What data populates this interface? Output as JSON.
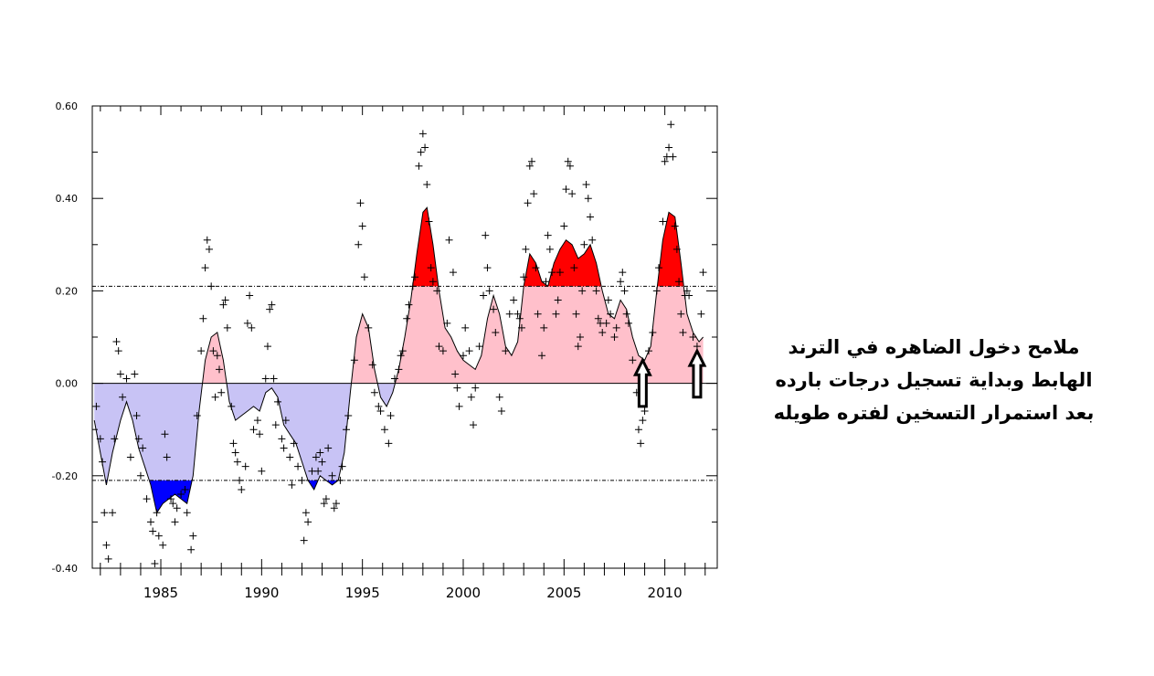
{
  "annotation": {
    "lines": [
      "ملامح دخول الضاهره في الترند",
      "الهابط وبداية تسجيل درجات بارده",
      "بعد استمرار التسخين لفتره طويله"
    ]
  },
  "chart_data": {
    "type": "area",
    "title": "",
    "xlabel": "",
    "ylabel": "",
    "xlim": [
      1981.6,
      2012.6
    ],
    "ylim": [
      -0.4,
      0.6
    ],
    "grid": false,
    "legend": "none",
    "x_ticks": [
      1985,
      1990,
      1995,
      2000,
      2005,
      2010
    ],
    "x_tick_labels": [
      "1985",
      "1990",
      "1995",
      "2000",
      "2005",
      "2010"
    ],
    "y_ticks": [
      -0.4,
      -0.2,
      0.0,
      0.2,
      0.4,
      0.6
    ],
    "y_tick_labels": [
      "-0.40",
      "-0.20",
      "0.00",
      "0.20",
      "0.40",
      "0.60"
    ],
    "reference_lines": [
      0.21,
      -0.21
    ],
    "colors": {
      "positive_fill": "#ffc0cb",
      "negative_fill": "#c8c3f5",
      "above_upper": "#ff0000",
      "below_lower": "#0000ff",
      "line": "#000000"
    },
    "smoothed": [
      [
        1981.7,
        -0.08
      ],
      [
        1982.0,
        -0.15
      ],
      [
        1982.3,
        -0.22
      ],
      [
        1982.6,
        -0.15
      ],
      [
        1983.0,
        -0.08
      ],
      [
        1983.3,
        -0.04
      ],
      [
        1983.6,
        -0.08
      ],
      [
        1983.9,
        -0.14
      ],
      [
        1984.2,
        -0.18
      ],
      [
        1984.5,
        -0.22
      ],
      [
        1984.8,
        -0.28
      ],
      [
        1985.1,
        -0.26
      ],
      [
        1985.4,
        -0.25
      ],
      [
        1985.7,
        -0.24
      ],
      [
        1986.0,
        -0.25
      ],
      [
        1986.3,
        -0.26
      ],
      [
        1986.6,
        -0.2
      ],
      [
        1986.9,
        -0.06
      ],
      [
        1987.2,
        0.05
      ],
      [
        1987.5,
        0.1
      ],
      [
        1987.8,
        0.11
      ],
      [
        1988.1,
        0.05
      ],
      [
        1988.4,
        -0.04
      ],
      [
        1988.7,
        -0.08
      ],
      [
        1989.0,
        -0.07
      ],
      [
        1989.3,
        -0.06
      ],
      [
        1989.6,
        -0.05
      ],
      [
        1989.9,
        -0.06
      ],
      [
        1990.2,
        -0.02
      ],
      [
        1990.5,
        -0.01
      ],
      [
        1990.8,
        -0.03
      ],
      [
        1991.1,
        -0.09
      ],
      [
        1991.4,
        -0.11
      ],
      [
        1991.7,
        -0.13
      ],
      [
        1992.0,
        -0.17
      ],
      [
        1992.3,
        -0.21
      ],
      [
        1992.6,
        -0.23
      ],
      [
        1992.9,
        -0.2
      ],
      [
        1993.2,
        -0.21
      ],
      [
        1993.5,
        -0.22
      ],
      [
        1993.8,
        -0.21
      ],
      [
        1994.1,
        -0.15
      ],
      [
        1994.4,
        -0.02
      ],
      [
        1994.7,
        0.1
      ],
      [
        1995.0,
        0.15
      ],
      [
        1995.3,
        0.12
      ],
      [
        1995.6,
        0.03
      ],
      [
        1995.9,
        -0.03
      ],
      [
        1996.2,
        -0.05
      ],
      [
        1996.5,
        -0.02
      ],
      [
        1996.8,
        0.03
      ],
      [
        1997.1,
        0.1
      ],
      [
        1997.4,
        0.18
      ],
      [
        1997.7,
        0.28
      ],
      [
        1998.0,
        0.37
      ],
      [
        1998.2,
        0.38
      ],
      [
        1998.5,
        0.3
      ],
      [
        1998.8,
        0.2
      ],
      [
        1999.1,
        0.12
      ],
      [
        1999.4,
        0.1
      ],
      [
        1999.7,
        0.07
      ],
      [
        2000.0,
        0.05
      ],
      [
        2000.3,
        0.04
      ],
      [
        2000.6,
        0.03
      ],
      [
        2000.9,
        0.06
      ],
      [
        2001.2,
        0.14
      ],
      [
        2001.5,
        0.19
      ],
      [
        2001.8,
        0.15
      ],
      [
        2002.1,
        0.08
      ],
      [
        2002.4,
        0.06
      ],
      [
        2002.7,
        0.09
      ],
      [
        2003.0,
        0.21
      ],
      [
        2003.3,
        0.28
      ],
      [
        2003.6,
        0.26
      ],
      [
        2003.9,
        0.22
      ],
      [
        2004.2,
        0.21
      ],
      [
        2004.5,
        0.26
      ],
      [
        2004.8,
        0.29
      ],
      [
        2005.1,
        0.31
      ],
      [
        2005.4,
        0.3
      ],
      [
        2005.7,
        0.27
      ],
      [
        2006.0,
        0.28
      ],
      [
        2006.3,
        0.3
      ],
      [
        2006.6,
        0.26
      ],
      [
        2006.9,
        0.2
      ],
      [
        2007.2,
        0.15
      ],
      [
        2007.5,
        0.14
      ],
      [
        2007.8,
        0.18
      ],
      [
        2008.1,
        0.16
      ],
      [
        2008.4,
        0.1
      ],
      [
        2008.7,
        0.06
      ],
      [
        2009.0,
        0.05
      ],
      [
        2009.3,
        0.08
      ],
      [
        2009.6,
        0.2
      ],
      [
        2009.9,
        0.31
      ],
      [
        2010.2,
        0.37
      ],
      [
        2010.5,
        0.36
      ],
      [
        2010.8,
        0.26
      ],
      [
        2011.1,
        0.15
      ],
      [
        2011.4,
        0.11
      ],
      [
        2011.7,
        0.09
      ],
      [
        2011.9,
        0.1
      ]
    ],
    "monthly_points": [
      [
        1981.8,
        -0.05
      ],
      [
        1982.0,
        -0.12
      ],
      [
        1982.1,
        -0.17
      ],
      [
        1982.2,
        -0.28
      ],
      [
        1982.3,
        -0.35
      ],
      [
        1982.4,
        -0.38
      ],
      [
        1982.6,
        -0.28
      ],
      [
        1982.7,
        -0.12
      ],
      [
        1982.8,
        0.09
      ],
      [
        1982.9,
        0.07
      ],
      [
        1983.0,
        0.02
      ],
      [
        1983.1,
        -0.03
      ],
      [
        1983.3,
        0.01
      ],
      [
        1983.5,
        -0.16
      ],
      [
        1983.7,
        0.02
      ],
      [
        1983.8,
        -0.07
      ],
      [
        1983.9,
        -0.12
      ],
      [
        1984.0,
        -0.2
      ],
      [
        1984.1,
        -0.14
      ],
      [
        1984.3,
        -0.25
      ],
      [
        1984.5,
        -0.3
      ],
      [
        1984.6,
        -0.32
      ],
      [
        1984.7,
        -0.39
      ],
      [
        1984.8,
        -0.28
      ],
      [
        1984.9,
        -0.33
      ],
      [
        1985.1,
        -0.35
      ],
      [
        1985.2,
        -0.11
      ],
      [
        1985.3,
        -0.16
      ],
      [
        1985.5,
        -0.25
      ],
      [
        1985.6,
        -0.26
      ],
      [
        1985.7,
        -0.3
      ],
      [
        1985.8,
        -0.27
      ],
      [
        1986.0,
        -0.24
      ],
      [
        1986.2,
        -0.23
      ],
      [
        1986.3,
        -0.28
      ],
      [
        1986.5,
        -0.36
      ],
      [
        1986.6,
        -0.33
      ],
      [
        1986.8,
        -0.07
      ],
      [
        1987.0,
        0.07
      ],
      [
        1987.1,
        0.14
      ],
      [
        1987.2,
        0.25
      ],
      [
        1987.3,
        0.31
      ],
      [
        1987.4,
        0.29
      ],
      [
        1987.5,
        0.21
      ],
      [
        1987.6,
        0.07
      ],
      [
        1987.7,
        -0.03
      ],
      [
        1987.8,
        0.06
      ],
      [
        1987.9,
        0.03
      ],
      [
        1988.0,
        -0.02
      ],
      [
        1988.1,
        0.17
      ],
      [
        1988.2,
        0.18
      ],
      [
        1988.3,
        0.12
      ],
      [
        1988.5,
        -0.05
      ],
      [
        1988.6,
        -0.13
      ],
      [
        1988.7,
        -0.15
      ],
      [
        1988.8,
        -0.17
      ],
      [
        1988.9,
        -0.21
      ],
      [
        1989.0,
        -0.23
      ],
      [
        1989.2,
        -0.18
      ],
      [
        1989.3,
        0.13
      ],
      [
        1989.4,
        0.19
      ],
      [
        1989.5,
        0.12
      ],
      [
        1989.6,
        -0.1
      ],
      [
        1989.8,
        -0.08
      ],
      [
        1989.9,
        -0.11
      ],
      [
        1990.0,
        -0.19
      ],
      [
        1990.2,
        0.01
      ],
      [
        1990.3,
        0.08
      ],
      [
        1990.4,
        0.16
      ],
      [
        1990.5,
        0.17
      ],
      [
        1990.6,
        0.01
      ],
      [
        1990.7,
        -0.09
      ],
      [
        1990.8,
        -0.04
      ],
      [
        1991.0,
        -0.12
      ],
      [
        1991.1,
        -0.14
      ],
      [
        1991.2,
        -0.08
      ],
      [
        1991.4,
        -0.16
      ],
      [
        1991.5,
        -0.22
      ],
      [
        1991.6,
        -0.13
      ],
      [
        1991.8,
        -0.18
      ],
      [
        1992.0,
        -0.21
      ],
      [
        1992.1,
        -0.34
      ],
      [
        1992.2,
        -0.28
      ],
      [
        1992.3,
        -0.3
      ],
      [
        1992.5,
        -0.19
      ],
      [
        1992.7,
        -0.16
      ],
      [
        1992.8,
        -0.19
      ],
      [
        1992.9,
        -0.15
      ],
      [
        1993.0,
        -0.17
      ],
      [
        1993.1,
        -0.26
      ],
      [
        1993.2,
        -0.25
      ],
      [
        1993.3,
        -0.14
      ],
      [
        1993.5,
        -0.2
      ],
      [
        1993.6,
        -0.27
      ],
      [
        1993.7,
        -0.26
      ],
      [
        1993.9,
        -0.21
      ],
      [
        1994.0,
        -0.18
      ],
      [
        1994.2,
        -0.1
      ],
      [
        1994.3,
        -0.07
      ],
      [
        1994.6,
        0.05
      ],
      [
        1994.8,
        0.3
      ],
      [
        1994.9,
        0.39
      ],
      [
        1995.0,
        0.34
      ],
      [
        1995.1,
        0.23
      ],
      [
        1995.3,
        0.12
      ],
      [
        1995.5,
        0.04
      ],
      [
        1995.6,
        -0.02
      ],
      [
        1995.8,
        -0.05
      ],
      [
        1995.9,
        -0.06
      ],
      [
        1996.1,
        -0.1
      ],
      [
        1996.3,
        -0.13
      ],
      [
        1996.4,
        -0.07
      ],
      [
        1996.6,
        0.01
      ],
      [
        1996.8,
        0.03
      ],
      [
        1996.9,
        0.06
      ],
      [
        1997.0,
        0.07
      ],
      [
        1997.2,
        0.14
      ],
      [
        1997.3,
        0.17
      ],
      [
        1997.5,
        0.21
      ],
      [
        1997.6,
        0.23
      ],
      [
        1997.8,
        0.47
      ],
      [
        1997.9,
        0.5
      ],
      [
        1998.0,
        0.54
      ],
      [
        1998.1,
        0.51
      ],
      [
        1998.2,
        0.43
      ],
      [
        1998.3,
        0.35
      ],
      [
        1998.4,
        0.25
      ],
      [
        1998.5,
        0.22
      ],
      [
        1998.7,
        0.2
      ],
      [
        1998.8,
        0.08
      ],
      [
        1999.0,
        0.07
      ],
      [
        1999.2,
        0.13
      ],
      [
        1999.3,
        0.31
      ],
      [
        1999.5,
        0.24
      ],
      [
        1999.6,
        0.02
      ],
      [
        1999.7,
        -0.01
      ],
      [
        1999.8,
        -0.05
      ],
      [
        2000.0,
        0.06
      ],
      [
        2000.1,
        0.12
      ],
      [
        2000.3,
        0.07
      ],
      [
        2000.4,
        -0.03
      ],
      [
        2000.5,
        -0.09
      ],
      [
        2000.6,
        -0.01
      ],
      [
        2000.8,
        0.08
      ],
      [
        2001.0,
        0.19
      ],
      [
        2001.1,
        0.32
      ],
      [
        2001.2,
        0.25
      ],
      [
        2001.3,
        0.2
      ],
      [
        2001.5,
        0.16
      ],
      [
        2001.6,
        0.11
      ],
      [
        2001.8,
        -0.03
      ],
      [
        2001.9,
        -0.06
      ],
      [
        2002.1,
        0.07
      ],
      [
        2002.3,
        0.15
      ],
      [
        2002.5,
        0.18
      ],
      [
        2002.7,
        0.15
      ],
      [
        2002.8,
        0.14
      ],
      [
        2002.9,
        0.12
      ],
      [
        2003.0,
        0.23
      ],
      [
        2003.1,
        0.29
      ],
      [
        2003.2,
        0.39
      ],
      [
        2003.3,
        0.47
      ],
      [
        2003.4,
        0.48
      ],
      [
        2003.5,
        0.41
      ],
      [
        2003.6,
        0.25
      ],
      [
        2003.7,
        0.15
      ],
      [
        2003.9,
        0.06
      ],
      [
        2004.0,
        0.12
      ],
      [
        2004.1,
        0.22
      ],
      [
        2004.2,
        0.32
      ],
      [
        2004.3,
        0.29
      ],
      [
        2004.4,
        0.24
      ],
      [
        2004.6,
        0.15
      ],
      [
        2004.7,
        0.18
      ],
      [
        2004.8,
        0.24
      ],
      [
        2005.0,
        0.34
      ],
      [
        2005.1,
        0.42
      ],
      [
        2005.2,
        0.48
      ],
      [
        2005.3,
        0.47
      ],
      [
        2005.4,
        0.41
      ],
      [
        2005.5,
        0.25
      ],
      [
        2005.6,
        0.15
      ],
      [
        2005.7,
        0.08
      ],
      [
        2005.8,
        0.1
      ],
      [
        2005.9,
        0.2
      ],
      [
        2006.0,
        0.3
      ],
      [
        2006.1,
        0.43
      ],
      [
        2006.2,
        0.4
      ],
      [
        2006.3,
        0.36
      ],
      [
        2006.4,
        0.31
      ],
      [
        2006.6,
        0.2
      ],
      [
        2006.7,
        0.14
      ],
      [
        2006.8,
        0.13
      ],
      [
        2006.9,
        0.11
      ],
      [
        2007.1,
        0.13
      ],
      [
        2007.2,
        0.18
      ],
      [
        2007.3,
        0.15
      ],
      [
        2007.5,
        0.1
      ],
      [
        2007.6,
        0.12
      ],
      [
        2007.8,
        0.22
      ],
      [
        2007.9,
        0.24
      ],
      [
        2008.0,
        0.2
      ],
      [
        2008.1,
        0.15
      ],
      [
        2008.2,
        0.13
      ],
      [
        2008.4,
        0.05
      ],
      [
        2008.6,
        -0.02
      ],
      [
        2008.7,
        -0.1
      ],
      [
        2008.8,
        -0.13
      ],
      [
        2008.9,
        -0.08
      ],
      [
        2009.0,
        -0.06
      ],
      [
        2009.1,
        0.03
      ],
      [
        2009.2,
        0.07
      ],
      [
        2009.4,
        0.11
      ],
      [
        2009.6,
        0.2
      ],
      [
        2009.7,
        0.25
      ],
      [
        2009.9,
        0.35
      ],
      [
        2010.0,
        0.48
      ],
      [
        2010.1,
        0.49
      ],
      [
        2010.2,
        0.51
      ],
      [
        2010.3,
        0.56
      ],
      [
        2010.4,
        0.49
      ],
      [
        2010.5,
        0.34
      ],
      [
        2010.6,
        0.29
      ],
      [
        2010.7,
        0.22
      ],
      [
        2010.8,
        0.15
      ],
      [
        2010.9,
        0.11
      ],
      [
        2011.0,
        0.19
      ],
      [
        2011.1,
        0.2
      ],
      [
        2011.2,
        0.19
      ],
      [
        2011.4,
        0.1
      ],
      [
        2011.6,
        0.08
      ],
      [
        2011.8,
        0.15
      ],
      [
        2011.9,
        0.24
      ]
    ],
    "arrows": [
      {
        "x": 2008.9,
        "y_top": 0.05,
        "y_bottom": -0.05
      },
      {
        "x": 2011.6,
        "y_top": 0.07,
        "y_bottom": -0.03
      }
    ]
  }
}
